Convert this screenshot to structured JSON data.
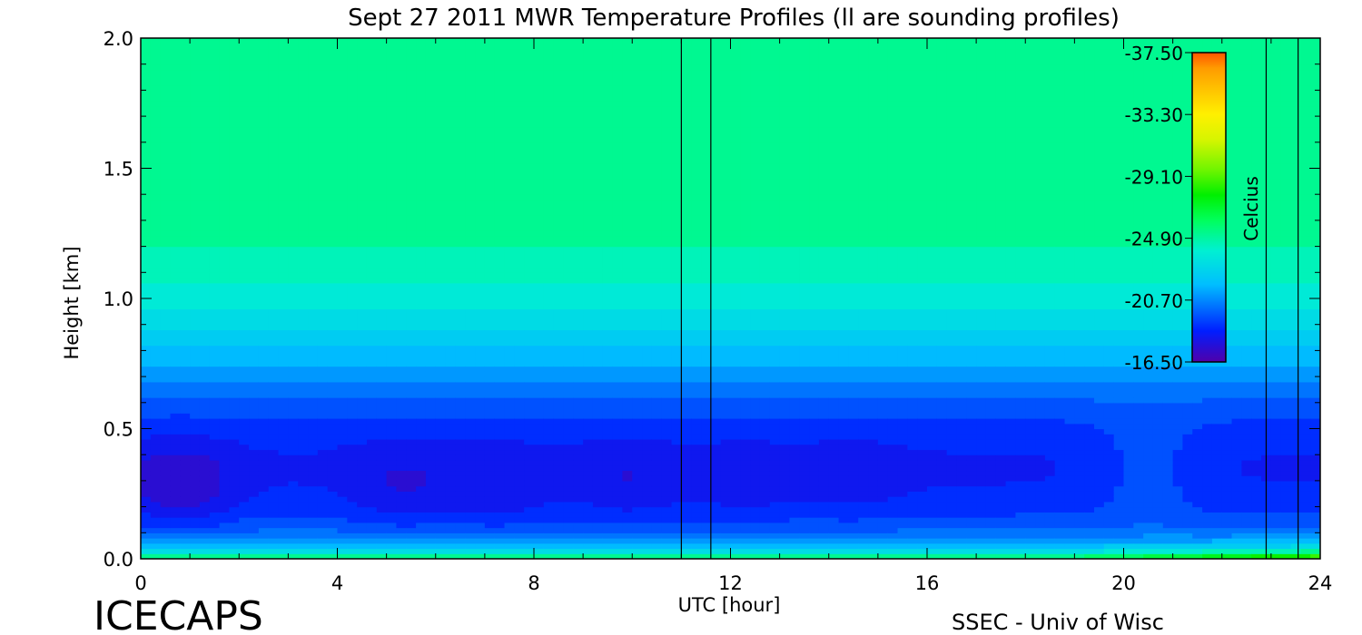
{
  "title": "Sept 27 2011 MWR Temperature Profiles (ll are sounding profiles)",
  "footer_left": "ICECAPS",
  "footer_right": "SSEC - Univ of Wisc",
  "chart_data": {
    "type": "heatmap",
    "title": "Sept 27 2011 MWR Temperature Profiles (ll are sounding profiles)",
    "xlabel": "UTC [hour]",
    "ylabel": "Height [km]",
    "xlim": [
      0,
      24
    ],
    "ylim": [
      0,
      2
    ],
    "xticks": [
      0,
      4,
      8,
      12,
      16,
      20,
      24
    ],
    "xtick_labels": [
      "0",
      "4",
      "8",
      "12",
      "16",
      "20",
      "24"
    ],
    "yticks": [
      0.0,
      0.5,
      1.0,
      1.5,
      2.0
    ],
    "ytick_labels": [
      "0.0",
      "0.5",
      "1.0",
      "1.5",
      "2.0"
    ],
    "colorbar": {
      "label": "Celcius",
      "range": [
        -37.5,
        -16.5
      ],
      "ticks": [
        -16.5,
        -20.7,
        -24.9,
        -29.1,
        -33.3,
        -37.5
      ],
      "tick_labels": [
        "-16.50",
        "-20.70",
        "-24.90",
        "-29.10",
        "-33.30",
        "-37.50"
      ]
    },
    "sounding_lines_utc": [
      11.0,
      11.6,
      22.9,
      23.55
    ],
    "warm_core_centers": [
      {
        "utc": 0.8,
        "height_km": 0.27,
        "temp_c": -17.3
      },
      {
        "utc": 5.3,
        "height_km": 0.26,
        "temp_c": -17.9
      },
      {
        "utc": 7.3,
        "height_km": 0.25,
        "temp_c": -18.0
      },
      {
        "utc": 9.9,
        "height_km": 0.28,
        "temp_c": -17.9
      },
      {
        "utc": 12.3,
        "height_km": 0.27,
        "temp_c": -18.1
      },
      {
        "utc": 14.5,
        "height_km": 0.3,
        "temp_c": -18.1
      },
      {
        "utc": 17.0,
        "height_km": 0.27,
        "temp_c": -18.6
      },
      {
        "utc": 20.5,
        "height_km": 0.35,
        "temp_c": -19.5
      }
    ],
    "top_temp_c": -25.5,
    "surface_temp_c": -27.0,
    "surface_cold_utc_range": [
      19,
      24
    ],
    "surface_cold_temp_c": -31.0
  }
}
